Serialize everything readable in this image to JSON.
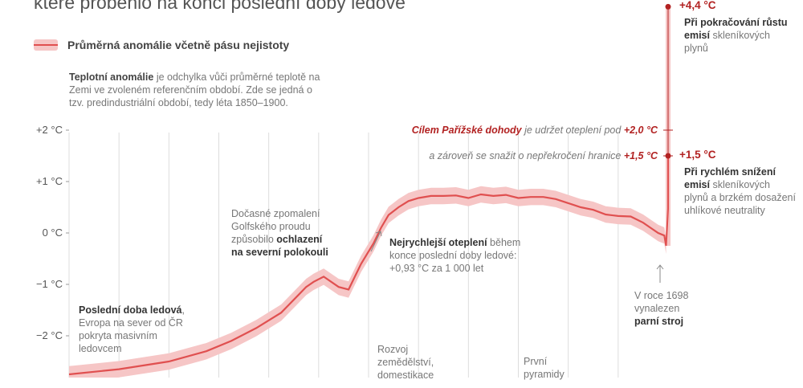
{
  "header": {
    "title": "které proběhlo na konci poslední doby ledové"
  },
  "legend": {
    "label": "Průměrná anomálie včetně pásu nejistoty"
  },
  "note": {
    "term": "Teplotní anomálie",
    "text": " je odchylka vůči průměrné teplotě na Zemi ve zvoleném referenčním období. Zde se jedná o tzv. predindustriální období, tedy léta 1850–1900."
  },
  "annotations": {
    "ice_age_bold": "Poslední doba ledová",
    "ice_age_text": ", Evropa na sever od ČR pokryta masivním ledovcem",
    "gulf_text": "Dočasné zpomalení Golfského proudu způsobilo ",
    "gulf_bold": "ochlazení na severní polokouli",
    "fastest_bold": "Nejrychlejší oteplení",
    "fastest_text": " během konce poslední doby ledové: +0,93 °C za 1 000 let",
    "agri_text": "Rozvoj zemědělství, domestikace",
    "pyramids_text": "První pyramidy",
    "steam_text": "V roce 1698 vynalezen ",
    "steam_bold": "parní stroj"
  },
  "paris": {
    "line1_prefix": "Cílem Pařížské dohody",
    "line1_mid": " je udržet oteplení pod ",
    "line1_value": "+2,0 °C",
    "line2_text": "a zároveň se snažit o nepřekročení hranice ",
    "line2_value": "+1,5 °C"
  },
  "scenarios": {
    "high_value": "+4,4 °C",
    "high_bold": "Při pokračování růstu emisí",
    "high_text": " skleníkových plynů",
    "low_value": "+1,5 °C",
    "low_bold": "Při rychlém snížení emisí",
    "low_text": " skleníkových plynů a brzkém dosažení uhlíkové neutrality"
  },
  "colors": {
    "line": "#e05050",
    "band": "#f6c6c6",
    "accent": "#b22222",
    "grid": "#dddddd"
  },
  "chart_data": {
    "type": "line",
    "title": "",
    "xlabel": "",
    "ylabel": "",
    "x_unit": "thousand years before present",
    "xlim": [
      24,
      0
    ],
    "ylim": [
      -2.6,
      4.6
    ],
    "y_ticks": [
      {
        "value": 2,
        "label": "+2 °C"
      },
      {
        "value": 1,
        "label": "+1 °C"
      },
      {
        "value": 0,
        "label": "0 °C"
      },
      {
        "value": -1,
        "label": "−1 °C"
      },
      {
        "value": -2,
        "label": "−2 °C"
      }
    ],
    "grid": true,
    "series": [
      {
        "name": "Průměrná anomálie včetně pásu nejistoty",
        "x": [
          24,
          22,
          20,
          18.5,
          17.5,
          16.5,
          15.5,
          14.8,
          14.5,
          14.2,
          13.8,
          13.2,
          12.8,
          12.3,
          11.8,
          11.5,
          11.2,
          10.8,
          10.4,
          10.0,
          9.5,
          9.0,
          8.5,
          8.0,
          7.5,
          7.0,
          6.5,
          6.0,
          5.5,
          5.0,
          4.5,
          4.0,
          3.5,
          3.0,
          2.5,
          2.0,
          1.5,
          1.0,
          0.7,
          0.4,
          0.15,
          0.08
        ],
        "values": [
          -2.75,
          -2.65,
          -2.5,
          -2.3,
          -2.1,
          -1.85,
          -1.55,
          -1.2,
          -1.05,
          -0.95,
          -0.85,
          -1.05,
          -1.1,
          -0.6,
          -0.2,
          0.1,
          0.35,
          0.5,
          0.62,
          0.68,
          0.72,
          0.72,
          0.73,
          0.68,
          0.75,
          0.72,
          0.74,
          0.68,
          0.7,
          0.7,
          0.66,
          0.58,
          0.5,
          0.45,
          0.36,
          0.33,
          0.32,
          0.2,
          0.1,
          0.0,
          -0.05,
          -0.25
        ],
        "uncertainty": 0.16
      }
    ],
    "projections": [
      {
        "name": "Při pokračování růstu emisí",
        "value": 4.4
      },
      {
        "name": "Při rychlém snížení emisí",
        "value": 1.5
      }
    ],
    "thresholds": [
      2.0,
      1.5
    ]
  }
}
